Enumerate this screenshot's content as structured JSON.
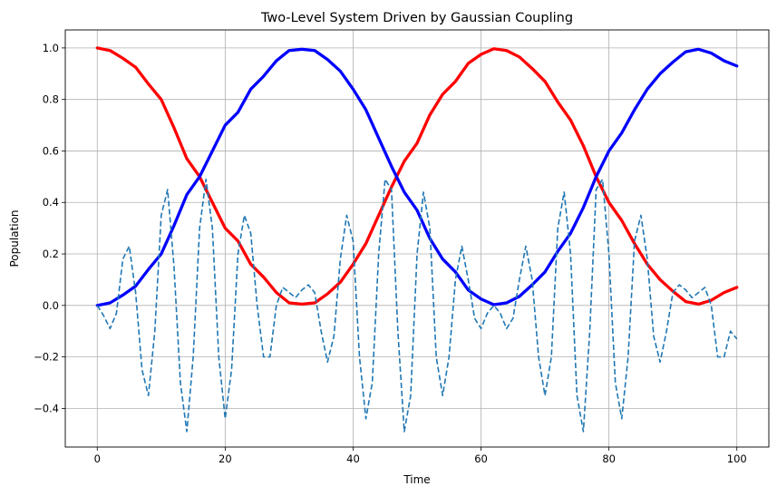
{
  "chart_data": {
    "type": "line",
    "title": "Two-Level System Driven by Gaussian Coupling",
    "xlabel": "Time",
    "ylabel": "Population",
    "xlim": [
      -5,
      105
    ],
    "ylim": [
      -0.55,
      1.07
    ],
    "grid": true,
    "xticks": [
      0,
      20,
      40,
      60,
      80,
      100
    ],
    "yticks": [
      -0.4,
      -0.2,
      0.0,
      0.2,
      0.4,
      0.6,
      0.8,
      1.0
    ],
    "xtick_labels": [
      "0",
      "20",
      "40",
      "60",
      "80",
      "100"
    ],
    "ytick_labels": [
      "−0.4",
      "−0.2",
      "0.0",
      "0.2",
      "0.4",
      "0.6",
      "0.8",
      "1.0"
    ],
    "series": [
      {
        "color": "#ff0000",
        "style": "solid",
        "points": [
          [
            0,
            1.0
          ],
          [
            2,
            0.99
          ],
          [
            4,
            0.96
          ],
          [
            6,
            0.925
          ],
          [
            8,
            0.86
          ],
          [
            10,
            0.8
          ],
          [
            12,
            0.69
          ],
          [
            14,
            0.57
          ],
          [
            16,
            0.5
          ],
          [
            18,
            0.4
          ],
          [
            20,
            0.3
          ],
          [
            22,
            0.25
          ],
          [
            24,
            0.16
          ],
          [
            26,
            0.11
          ],
          [
            28,
            0.05
          ],
          [
            30,
            0.01
          ],
          [
            32,
            0.005
          ],
          [
            34,
            0.01
          ],
          [
            36,
            0.045
          ],
          [
            38,
            0.09
          ],
          [
            40,
            0.16
          ],
          [
            42,
            0.24
          ],
          [
            44,
            0.35
          ],
          [
            46,
            0.46
          ],
          [
            48,
            0.56
          ],
          [
            50,
            0.63
          ],
          [
            52,
            0.74
          ],
          [
            54,
            0.82
          ],
          [
            56,
            0.87
          ],
          [
            58,
            0.94
          ],
          [
            60,
            0.975
          ],
          [
            62,
            0.997
          ],
          [
            64,
            0.99
          ],
          [
            66,
            0.965
          ],
          [
            68,
            0.92
          ],
          [
            70,
            0.87
          ],
          [
            72,
            0.79
          ],
          [
            74,
            0.72
          ],
          [
            76,
            0.62
          ],
          [
            78,
            0.5
          ],
          [
            80,
            0.4
          ],
          [
            82,
            0.33
          ],
          [
            84,
            0.24
          ],
          [
            86,
            0.16
          ],
          [
            88,
            0.1
          ],
          [
            90,
            0.055
          ],
          [
            92,
            0.015
          ],
          [
            94,
            0.005
          ],
          [
            96,
            0.02
          ],
          [
            98,
            0.05
          ],
          [
            100,
            0.07
          ]
        ]
      },
      {
        "color": "#0000ff",
        "style": "solid",
        "points": [
          [
            0,
            0.0
          ],
          [
            2,
            0.01
          ],
          [
            4,
            0.04
          ],
          [
            6,
            0.075
          ],
          [
            8,
            0.14
          ],
          [
            10,
            0.2
          ],
          [
            12,
            0.31
          ],
          [
            14,
            0.43
          ],
          [
            16,
            0.5
          ],
          [
            18,
            0.6
          ],
          [
            20,
            0.7
          ],
          [
            22,
            0.75
          ],
          [
            24,
            0.84
          ],
          [
            26,
            0.89
          ],
          [
            28,
            0.95
          ],
          [
            30,
            0.99
          ],
          [
            32,
            0.995
          ],
          [
            34,
            0.99
          ],
          [
            36,
            0.955
          ],
          [
            38,
            0.91
          ],
          [
            40,
            0.84
          ],
          [
            42,
            0.76
          ],
          [
            44,
            0.65
          ],
          [
            46,
            0.54
          ],
          [
            48,
            0.44
          ],
          [
            50,
            0.37
          ],
          [
            52,
            0.26
          ],
          [
            54,
            0.18
          ],
          [
            56,
            0.13
          ],
          [
            58,
            0.06
          ],
          [
            60,
            0.025
          ],
          [
            62,
            0.003
          ],
          [
            64,
            0.01
          ],
          [
            66,
            0.035
          ],
          [
            68,
            0.08
          ],
          [
            70,
            0.13
          ],
          [
            72,
            0.21
          ],
          [
            74,
            0.28
          ],
          [
            76,
            0.38
          ],
          [
            78,
            0.5
          ],
          [
            80,
            0.6
          ],
          [
            82,
            0.67
          ],
          [
            84,
            0.76
          ],
          [
            86,
            0.84
          ],
          [
            88,
            0.9
          ],
          [
            90,
            0.945
          ],
          [
            92,
            0.985
          ],
          [
            94,
            0.995
          ],
          [
            96,
            0.98
          ],
          [
            98,
            0.95
          ],
          [
            100,
            0.93
          ]
        ]
      },
      {
        "color": "#1f77b4",
        "style": "dashed",
        "points": [
          [
            0,
            0.0
          ],
          [
            1,
            -0.04
          ],
          [
            2,
            -0.09
          ],
          [
            3,
            -0.03
          ],
          [
            4,
            0.18
          ],
          [
            5,
            0.23
          ],
          [
            6,
            0.05
          ],
          [
            7,
            -0.25
          ],
          [
            8,
            -0.35
          ],
          [
            9,
            -0.1
          ],
          [
            10,
            0.35
          ],
          [
            11,
            0.45
          ],
          [
            12,
            0.15
          ],
          [
            13,
            -0.3
          ],
          [
            14,
            -0.49
          ],
          [
            15,
            -0.2
          ],
          [
            16,
            0.3
          ],
          [
            17,
            0.49
          ],
          [
            18,
            0.3
          ],
          [
            19,
            -0.2
          ],
          [
            20,
            -0.44
          ],
          [
            21,
            -0.25
          ],
          [
            22,
            0.2
          ],
          [
            23,
            0.35
          ],
          [
            24,
            0.28
          ],
          [
            25,
            0.0
          ],
          [
            26,
            -0.2
          ],
          [
            27,
            -0.2
          ],
          [
            28,
            0.0
          ],
          [
            29,
            0.07
          ],
          [
            30,
            0.05
          ],
          [
            31,
            0.03
          ],
          [
            32,
            0.06
          ],
          [
            33,
            0.08
          ],
          [
            34,
            0.05
          ],
          [
            35,
            -0.1
          ],
          [
            36,
            -0.22
          ],
          [
            37,
            -0.12
          ],
          [
            38,
            0.18
          ],
          [
            39,
            0.35
          ],
          [
            40,
            0.25
          ],
          [
            41,
            -0.2
          ],
          [
            42,
            -0.44
          ],
          [
            43,
            -0.3
          ],
          [
            44,
            0.2
          ],
          [
            45,
            0.49
          ],
          [
            46,
            0.45
          ],
          [
            47,
            -0.1
          ],
          [
            48,
            -0.49
          ],
          [
            49,
            -0.35
          ],
          [
            50,
            0.2
          ],
          [
            51,
            0.44
          ],
          [
            52,
            0.3
          ],
          [
            53,
            -0.2
          ],
          [
            54,
            -0.35
          ],
          [
            55,
            -0.2
          ],
          [
            56,
            0.1
          ],
          [
            57,
            0.23
          ],
          [
            58,
            0.1
          ],
          [
            59,
            -0.05
          ],
          [
            60,
            -0.09
          ],
          [
            61,
            -0.03
          ],
          [
            62,
            0.0
          ],
          [
            63,
            -0.03
          ],
          [
            64,
            -0.09
          ],
          [
            65,
            -0.05
          ],
          [
            66,
            0.1
          ],
          [
            67,
            0.23
          ],
          [
            68,
            0.1
          ],
          [
            69,
            -0.2
          ],
          [
            70,
            -0.35
          ],
          [
            71,
            -0.2
          ],
          [
            72,
            0.3
          ],
          [
            73,
            0.44
          ],
          [
            74,
            0.2
          ],
          [
            75,
            -0.35
          ],
          [
            76,
            -0.49
          ],
          [
            77,
            -0.1
          ],
          [
            78,
            0.45
          ],
          [
            79,
            0.49
          ],
          [
            80,
            0.2
          ],
          [
            81,
            -0.3
          ],
          [
            82,
            -0.44
          ],
          [
            83,
            -0.2
          ],
          [
            84,
            0.25
          ],
          [
            85,
            0.35
          ],
          [
            86,
            0.18
          ],
          [
            87,
            -0.12
          ],
          [
            88,
            -0.22
          ],
          [
            89,
            -0.1
          ],
          [
            90,
            0.05
          ],
          [
            91,
            0.08
          ],
          [
            92,
            0.06
          ],
          [
            93,
            0.03
          ],
          [
            94,
            0.05
          ],
          [
            95,
            0.07
          ],
          [
            96,
            0.0
          ],
          [
            97,
            -0.2
          ],
          [
            98,
            -0.2
          ],
          [
            99,
            -0.1
          ],
          [
            100,
            -0.13
          ]
        ]
      }
    ]
  }
}
